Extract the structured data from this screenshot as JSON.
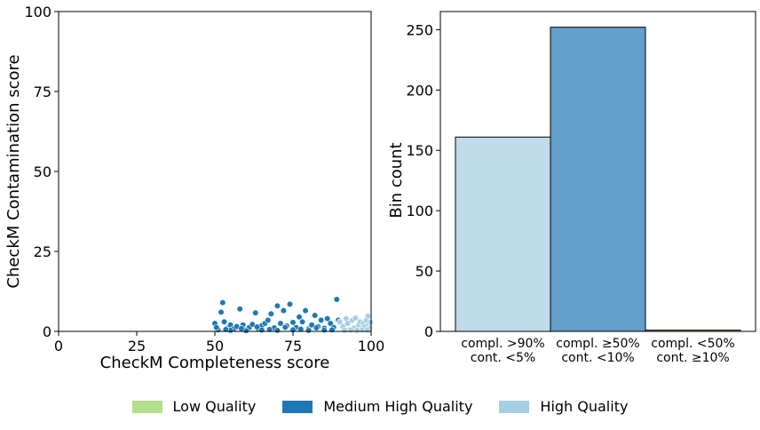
{
  "chart_data": [
    {
      "type": "scatter",
      "xlabel": "CheckM Completeness score",
      "ylabel": "CheckM Contamination score",
      "xlim": [
        0,
        100
      ],
      "ylim": [
        0,
        100
      ],
      "xticks": [
        "0",
        "25",
        "50",
        "75",
        "100"
      ],
      "yticks": [
        "0",
        "25",
        "50",
        "75",
        "100"
      ],
      "series": [
        {
          "name": "Medium High Quality",
          "color": "#1f78b4",
          "points": [
            [
              50,
              2.5
            ],
            [
              51,
              0.5
            ],
            [
              52,
              6
            ],
            [
              52.5,
              9
            ],
            [
              53,
              3
            ],
            [
              54,
              1
            ],
            [
              55,
              2
            ],
            [
              56,
              0.8
            ],
            [
              57,
              1.5
            ],
            [
              58,
              7
            ],
            [
              59,
              2
            ],
            [
              60,
              0.5
            ],
            [
              61,
              1.2
            ],
            [
              62,
              2.2
            ],
            [
              63,
              5.8
            ],
            [
              64,
              0.7
            ],
            [
              65,
              1.8
            ],
            [
              66,
              2.5
            ],
            [
              67,
              3.5
            ],
            [
              68,
              5.5
            ],
            [
              69,
              1.1
            ],
            [
              70,
              8
            ],
            [
              71,
              2.5
            ],
            [
              72,
              6.5
            ],
            [
              73,
              1.7
            ],
            [
              74,
              8.5
            ],
            [
              75,
              2.8
            ],
            [
              76,
              1.2
            ],
            [
              77,
              4.5
            ],
            [
              78,
              3
            ],
            [
              79,
              6.5
            ],
            [
              80,
              0.8
            ],
            [
              81,
              2
            ],
            [
              82,
              5
            ],
            [
              83,
              1.5
            ],
            [
              84,
              3.5
            ],
            [
              85,
              1
            ],
            [
              86,
              4
            ],
            [
              87,
              2.5
            ],
            [
              88,
              1.2
            ],
            [
              89,
              10
            ],
            [
              89.5,
              3.5
            ],
            [
              55,
              0.3
            ],
            [
              60,
              0.2
            ],
            [
              65,
              0.4
            ],
            [
              70,
              0.3
            ],
            [
              75,
              0.5
            ],
            [
              80,
              0.3
            ],
            [
              85,
              0.4
            ],
            [
              50.5,
              1.2
            ],
            [
              53.5,
              0.6
            ],
            [
              58.5,
              0.9
            ],
            [
              63.5,
              1.4
            ],
            [
              67.5,
              0.6
            ],
            [
              72.5,
              1.3
            ],
            [
              77.5,
              0.7
            ],
            [
              82.5,
              1.1
            ],
            [
              87.5,
              0.5
            ]
          ]
        },
        {
          "name": "High Quality",
          "color": "#a6cee3",
          "points": [
            [
              90,
              3
            ],
            [
              91,
              1.5
            ],
            [
              92,
              4
            ],
            [
              92.5,
              2.5
            ],
            [
              93,
              0.5
            ],
            [
              94,
              3.5
            ],
            [
              94.5,
              1
            ],
            [
              95,
              4.2
            ],
            [
              96,
              2
            ],
            [
              96.5,
              3
            ],
            [
              97,
              0.8
            ],
            [
              97.5,
              2.5
            ],
            [
              98,
              1.5
            ],
            [
              98.5,
              3.5
            ],
            [
              99,
              4.8
            ],
            [
              99.2,
              2
            ],
            [
              99.5,
              1
            ],
            [
              99.8,
              2.8
            ],
            [
              91.5,
              0.3
            ],
            [
              93.5,
              0.4
            ],
            [
              95.5,
              0.3
            ],
            [
              97.2,
              0.5
            ],
            [
              98.8,
              0.4
            ]
          ]
        }
      ]
    },
    {
      "type": "bar",
      "ylabel": "Bin count",
      "ylim": [
        0,
        265
      ],
      "yticks": [
        "0",
        "50",
        "100",
        "150",
        "200",
        "250"
      ],
      "categories": [
        [
          "compl. >90%",
          "cont. <5%"
        ],
        [
          "compl. ≥50%",
          "cont. <10%"
        ],
        [
          "compl. <50%",
          "cont. ≥10%"
        ]
      ],
      "values": [
        161,
        252,
        1
      ],
      "colors": [
        "#c0dcea",
        "#63a0cb",
        "#b2df8a"
      ]
    }
  ],
  "legend": [
    {
      "label": "Low Quality",
      "color": "#b2df8a"
    },
    {
      "label": "Medium High Quality",
      "color": "#1f78b4"
    },
    {
      "label": "High Quality",
      "color": "#a6cee3"
    }
  ]
}
